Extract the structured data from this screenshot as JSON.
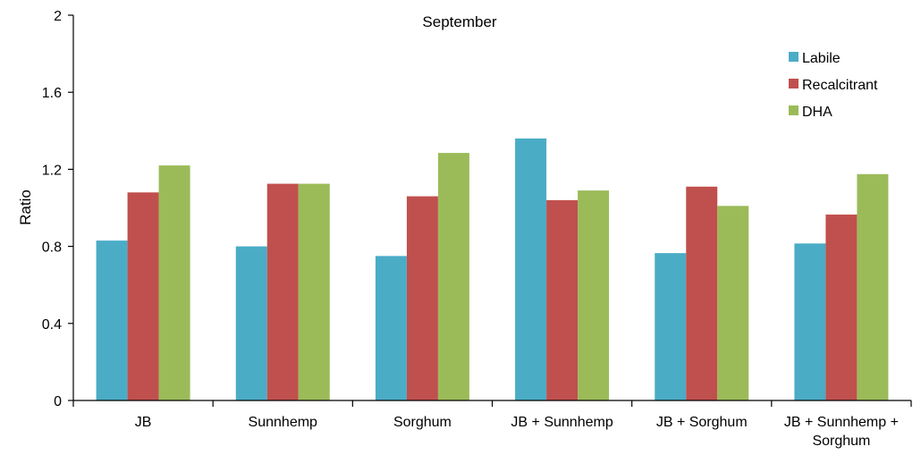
{
  "chart_data": {
    "type": "bar",
    "title": "September",
    "xlabel": "",
    "ylabel": "Ratio",
    "ylim": [
      0,
      2
    ],
    "yticks": [
      "0",
      "0.4",
      "0.8",
      "1.2",
      "1.6",
      "2"
    ],
    "grid": false,
    "legend_position": "top-right",
    "categories": [
      [
        "JB"
      ],
      [
        "Sunnhemp"
      ],
      [
        "Sorghum"
      ],
      [
        "JB + Sunnhemp"
      ],
      [
        "JB + Sorghum"
      ],
      [
        "JB + Sunnhemp +",
        "Sorghum"
      ]
    ],
    "series": [
      {
        "name": "Labile",
        "color": "#4bacc6",
        "values": [
          0.83,
          0.8,
          0.75,
          1.36,
          0.765,
          0.815
        ]
      },
      {
        "name": "Recalcitrant",
        "color": "#c0504d",
        "values": [
          1.08,
          1.125,
          1.06,
          1.04,
          1.11,
          0.965
        ]
      },
      {
        "name": "DHA",
        "color": "#9bbb59",
        "values": [
          1.22,
          1.125,
          1.285,
          1.09,
          1.01,
          1.175
        ]
      }
    ]
  }
}
